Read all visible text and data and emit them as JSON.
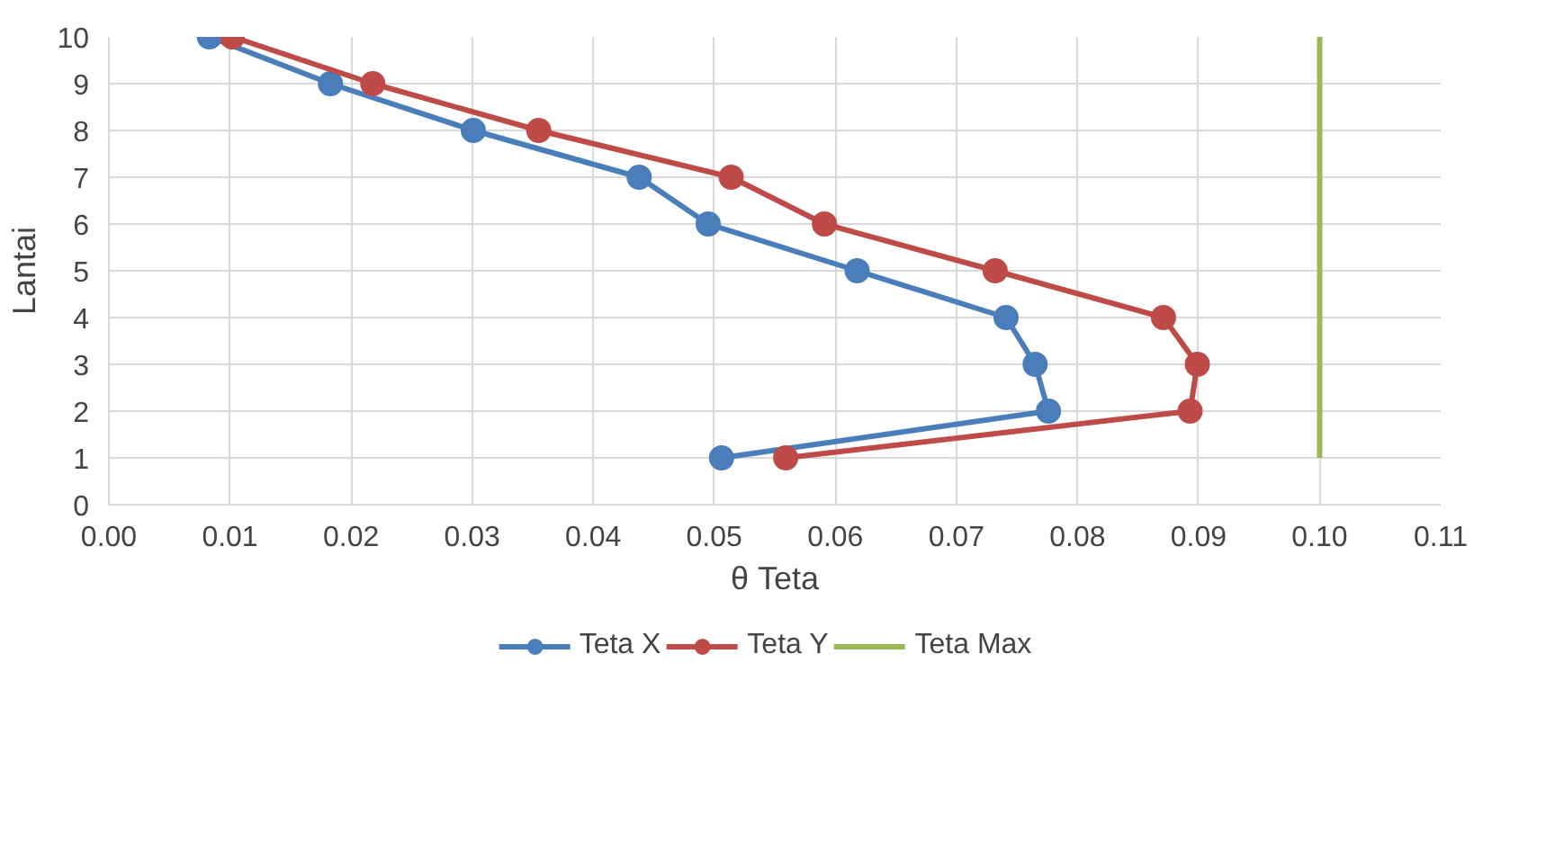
{
  "chart_data": {
    "type": "line",
    "xlabel": "θ Teta",
    "ylabel": "Lantai",
    "xlim": [
      0,
      0.11
    ],
    "xticks": [
      {
        "value": 0,
        "label": "0.00"
      },
      {
        "value": 0.01,
        "label": "0.01"
      },
      {
        "value": 0.02,
        "label": "0.02"
      },
      {
        "value": 0.03,
        "label": "0.03"
      },
      {
        "value": 0.04,
        "label": "0.04"
      },
      {
        "value": 0.05,
        "label": "0.05"
      },
      {
        "value": 0.06,
        "label": "0.06"
      },
      {
        "value": 0.07,
        "label": "0.07"
      },
      {
        "value": 0.08,
        "label": "0.08"
      },
      {
        "value": 0.09,
        "label": "0.09"
      },
      {
        "value": 0.1,
        "label": "0.10"
      },
      {
        "value": 0.11,
        "label": "0.11"
      }
    ],
    "ylim": [
      0,
      10
    ],
    "yticks": [
      0,
      1,
      2,
      3,
      4,
      5,
      6,
      7,
      8,
      9,
      10
    ],
    "grid": true,
    "legend": "bottom",
    "series": [
      {
        "name": "Teta X",
        "color": "#4a7ebb",
        "marker": "circle",
        "x": [
          0.0506,
          0.0776,
          0.0765,
          0.0741,
          0.0618,
          0.0495,
          0.0438,
          0.0301,
          0.0183,
          0.0083
        ],
        "values": [
          1,
          2,
          3,
          4,
          5,
          6,
          7,
          8,
          9,
          10
        ]
      },
      {
        "name": "Teta Y",
        "color": "#be4b48",
        "marker": "circle",
        "x": [
          0.0559,
          0.0893,
          0.0899,
          0.0871,
          0.0732,
          0.0591,
          0.0514,
          0.0355,
          0.0218,
          0.0102
        ],
        "values": [
          1,
          2,
          3,
          4,
          5,
          6,
          7,
          8,
          9,
          10
        ]
      },
      {
        "name": "Teta Max",
        "color": "#98b954",
        "marker": "none",
        "x": [
          0.1,
          0.1
        ],
        "values": [
          1,
          10
        ]
      }
    ]
  }
}
